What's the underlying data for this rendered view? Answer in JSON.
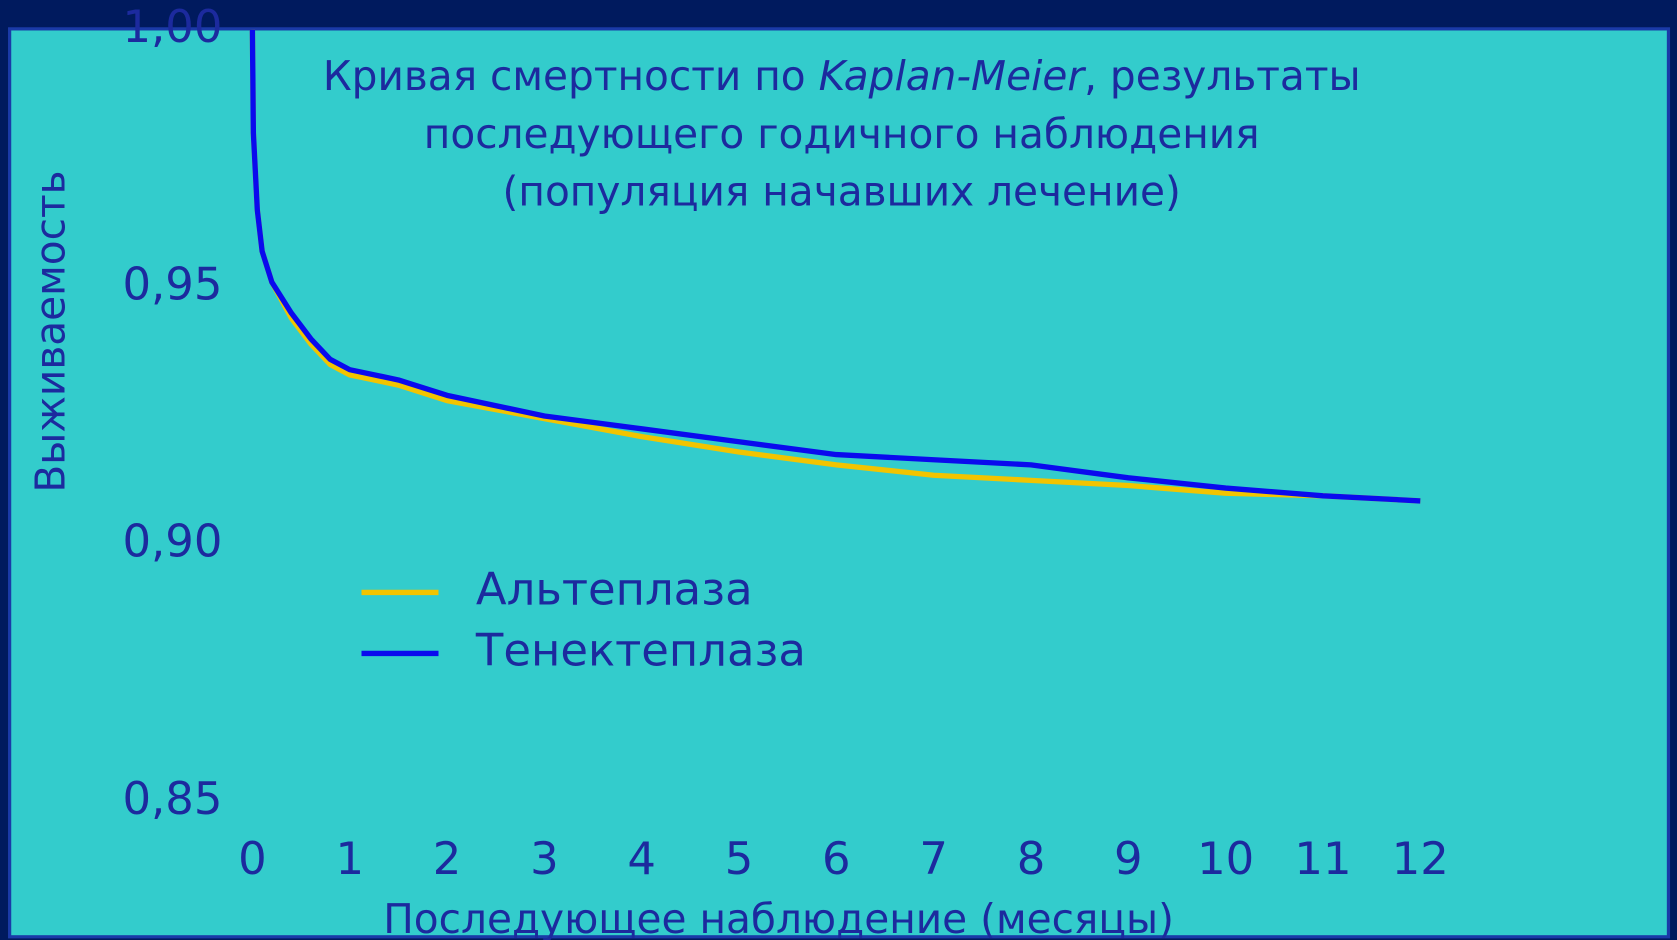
{
  "chart_data": {
    "type": "line",
    "title": [
      "Кривая смертности по ",
      "Kaplan-Meier",
      ", результаты",
      "последующего годичного наблюдения",
      "(популяция начавших лечение)"
    ],
    "x_label": "Последующее наблюдение (месяцы)",
    "y_label": "Выживаемость",
    "x": [
      0,
      0.01,
      0.05,
      0.1,
      0.2,
      0.4,
      0.6,
      0.8,
      1,
      1.5,
      2,
      3,
      4,
      5,
      6,
      7,
      8,
      9,
      10,
      11,
      12
    ],
    "series": [
      {
        "name": "Альтеплаза",
        "color": "#f2c400",
        "values": [
          1.0,
          0.98,
          0.965,
          0.957,
          0.951,
          0.944,
          0.939,
          0.935,
          0.933,
          0.931,
          0.928,
          0.9245,
          0.921,
          0.918,
          0.9155,
          0.9135,
          0.9125,
          0.9115,
          0.91,
          0.9095,
          0.9085
        ]
      },
      {
        "name": "Тенектеплаза",
        "color": "#0a0aee",
        "values": [
          1.0,
          0.98,
          0.965,
          0.957,
          0.951,
          0.945,
          0.94,
          0.936,
          0.934,
          0.932,
          0.929,
          0.925,
          0.9225,
          0.92,
          0.9175,
          0.9165,
          0.9155,
          0.913,
          0.911,
          0.9095,
          0.9085
        ]
      }
    ],
    "xlim": [
      0,
      12
    ],
    "xticks": [
      0,
      1,
      2,
      3,
      4,
      5,
      6,
      7,
      8,
      9,
      10,
      11,
      12
    ],
    "ylim": [
      0.85,
      1.0
    ],
    "yticks": [
      {
        "value": 0.85,
        "label": "0,85"
      },
      {
        "value": 0.9,
        "label": "0,90"
      },
      {
        "value": 0.95,
        "label": "0,95"
      },
      {
        "value": 1.0,
        "label": "1,00"
      }
    ],
    "grid": false
  }
}
